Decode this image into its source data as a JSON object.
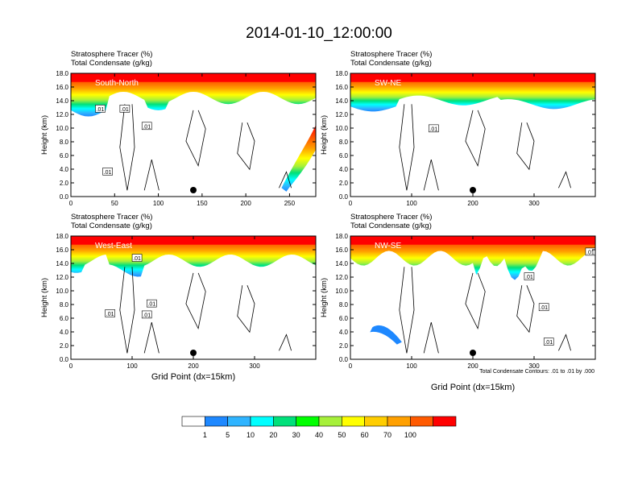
{
  "title": "2014-01-10_12:00:00",
  "panel_label_1": "Stratosphere Tracer   (%)",
  "panel_label_2": "Total Condensate   (g/kg)",
  "ylabel": "Height (km)",
  "xlabel": "Grid Point (dx=15km)",
  "contour_note": "Total Condensate Contours: .01 to .01 by .000",
  "colorbar": {
    "labels": [
      "1",
      "5",
      "10",
      "20",
      "30",
      "40",
      "50",
      "60",
      "70",
      "100"
    ],
    "colors": [
      "#ffffff",
      "#1e88ff",
      "#2fb4ff",
      "#00ffff",
      "#00e07a",
      "#00ff00",
      "#a6f03a",
      "#ffff00",
      "#ffcd00",
      "#ffa000",
      "#ff5a00",
      "#ff0000"
    ]
  },
  "chart_data": [
    {
      "type": "contour-cross-section",
      "name": "South-North",
      "ylim": [
        0,
        18
      ],
      "xlim": [
        0,
        280
      ],
      "yticks": [
        "0.0",
        "2.0",
        "4.0",
        "6.0",
        "8.0",
        "10.0",
        "12.0",
        "14.0",
        "16.0",
        "18.0"
      ],
      "xticks": [
        "0",
        "50",
        "100",
        "150",
        "200",
        "250"
      ],
      "xtick_values": [
        0,
        50,
        100,
        150,
        200,
        250
      ],
      "marker_x": 140,
      "contour_labels": [
        ".01",
        ".01",
        ".01",
        ".01"
      ]
    },
    {
      "type": "contour-cross-section",
      "name": "SW-NE",
      "ylim": [
        0,
        18
      ],
      "xlim": [
        0,
        400
      ],
      "yticks": [
        "0.0",
        "2.0",
        "4.0",
        "6.0",
        "8.0",
        "10.0",
        "12.0",
        "14.0",
        "16.0",
        "18.0"
      ],
      "xticks": [
        "0",
        "100",
        "200",
        "300"
      ],
      "xtick_values": [
        0,
        100,
        200,
        300
      ],
      "marker_x": 200,
      "contour_labels": [
        ".01"
      ]
    },
    {
      "type": "contour-cross-section",
      "name": "West-East",
      "ylim": [
        0,
        18
      ],
      "xlim": [
        0,
        400
      ],
      "yticks": [
        "0.0",
        "2.0",
        "4.0",
        "6.0",
        "8.0",
        "10.0",
        "12.0",
        "14.0",
        "16.0",
        "18.0"
      ],
      "xticks": [
        "0",
        "100",
        "200",
        "300"
      ],
      "xtick_values": [
        0,
        100,
        200,
        300
      ],
      "marker_x": 200,
      "contour_labels": [
        ".01",
        ".01",
        ".01",
        ".01"
      ]
    },
    {
      "type": "contour-cross-section",
      "name": "NW-SE",
      "ylim": [
        0,
        18
      ],
      "xlim": [
        0,
        400
      ],
      "yticks": [
        "0.0",
        "2.0",
        "4.0",
        "6.0",
        "8.0",
        "10.0",
        "12.0",
        "14.0",
        "16.0",
        "18.0"
      ],
      "xticks": [
        "0",
        "100",
        "200",
        "300"
      ],
      "xtick_values": [
        0,
        100,
        200,
        300
      ],
      "marker_x": 200,
      "contour_labels": [
        ".01",
        ".01",
        ".01",
        ".01"
      ]
    }
  ]
}
